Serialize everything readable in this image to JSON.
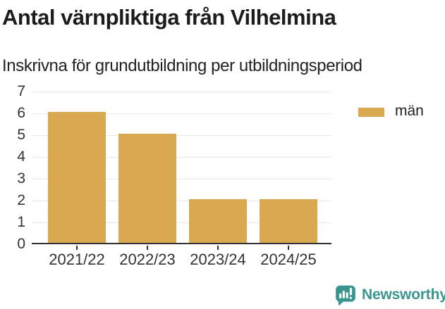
{
  "header": {
    "title": "Antal värnpliktiga från Vilhelmina",
    "subtitle": "Inskrivna för grundutbildning per utbildningsperiod"
  },
  "chart_data": {
    "type": "bar",
    "title": "Antal värnpliktiga från Vilhelmina",
    "subtitle": "Inskrivna för grundutbildning per utbildningsperiod",
    "categories": [
      "2021/22",
      "2022/23",
      "2023/24",
      "2024/25"
    ],
    "series": [
      {
        "name": "män",
        "values": [
          6,
          5,
          2,
          2
        ]
      }
    ],
    "xlabel": "",
    "ylabel": "",
    "ylim": [
      0,
      7
    ],
    "yticks": [
      0,
      1,
      2,
      3,
      4,
      5,
      6,
      7
    ],
    "grid": true,
    "legend_position": "right-top",
    "bar_color": "#d9a851"
  },
  "legend": {
    "items": [
      {
        "label": "män",
        "color": "#d9a851"
      }
    ]
  },
  "footer": {
    "brand": "Newsworthy",
    "brand_color": "#3a958f",
    "logo_icon": "bar-chart-speech-bubble"
  },
  "colors": {
    "bar": "#d9a851",
    "axis": "#333333",
    "grid": "#e9e9e9",
    "teal": "#3a958f"
  }
}
